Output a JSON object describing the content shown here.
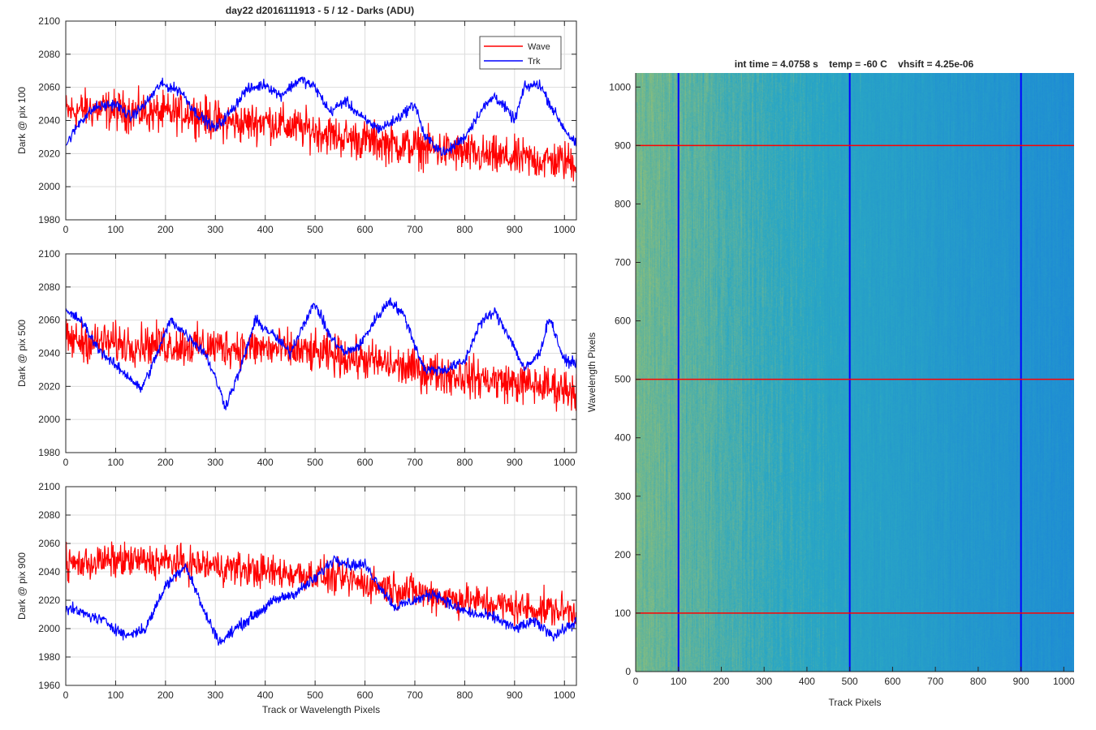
{
  "figure_title": "day22 d2016111913 - 5 / 12 - Darks (ADU)",
  "colors": {
    "wave": "#ff0000",
    "trk": "#0000ff",
    "grid": "#dcdcdc",
    "axis": "#262626",
    "heat_yellow": "#b9c858",
    "heat_teal": "#2aa7c4",
    "heat_blue": "#1d89d6"
  },
  "chart_data": [
    {
      "type": "line",
      "ylabel": "Dark @ pix 100",
      "xlabel": "",
      "xlim": [
        0,
        1024
      ],
      "ylim": [
        1980,
        2100
      ],
      "xticks": [
        0,
        100,
        200,
        300,
        400,
        500,
        600,
        700,
        800,
        900,
        1000
      ],
      "yticks": [
        1980,
        2000,
        2020,
        2040,
        2060,
        2080,
        2100
      ],
      "grid": true,
      "legend": "top-right",
      "series": [
        {
          "name": "Wave",
          "color": "#ff0000",
          "points": [
            [
              0,
              2045
            ],
            [
              50,
              2047
            ],
            [
              100,
              2046
            ],
            [
              150,
              2045
            ],
            [
              200,
              2044
            ],
            [
              250,
              2045
            ],
            [
              300,
              2040
            ],
            [
              350,
              2038
            ],
            [
              400,
              2040
            ],
            [
              450,
              2036
            ],
            [
              500,
              2034
            ],
            [
              550,
              2030
            ],
            [
              600,
              2028
            ],
            [
              650,
              2026
            ],
            [
              700,
              2024
            ],
            [
              750,
              2022
            ],
            [
              800,
              2020
            ],
            [
              850,
              2018
            ],
            [
              900,
              2017
            ],
            [
              950,
              2016
            ],
            [
              1024,
              2015
            ]
          ],
          "amplitude": 18
        },
        {
          "name": "Trk",
          "color": "#0000ff",
          "points": [
            [
              0,
              2025
            ],
            [
              30,
              2040
            ],
            [
              60,
              2048
            ],
            [
              100,
              2050
            ],
            [
              130,
              2042
            ],
            [
              160,
              2050
            ],
            [
              190,
              2062
            ],
            [
              230,
              2058
            ],
            [
              260,
              2045
            ],
            [
              300,
              2035
            ],
            [
              330,
              2045
            ],
            [
              360,
              2058
            ],
            [
              400,
              2062
            ],
            [
              430,
              2055
            ],
            [
              470,
              2065
            ],
            [
              500,
              2060
            ],
            [
              530,
              2045
            ],
            [
              560,
              2052
            ],
            [
              600,
              2040
            ],
            [
              630,
              2035
            ],
            [
              660,
              2040
            ],
            [
              700,
              2050
            ],
            [
              720,
              2030
            ],
            [
              760,
              2020
            ],
            [
              800,
              2030
            ],
            [
              830,
              2045
            ],
            [
              860,
              2055
            ],
            [
              880,
              2048
            ],
            [
              900,
              2040
            ],
            [
              920,
              2060
            ],
            [
              950,
              2062
            ],
            [
              980,
              2045
            ],
            [
              1000,
              2035
            ],
            [
              1024,
              2025
            ]
          ],
          "amplitude": 5
        }
      ]
    },
    {
      "type": "line",
      "ylabel": "Dark @ pix 500",
      "xlabel": "",
      "xlim": [
        0,
        1024
      ],
      "ylim": [
        1980,
        2100
      ],
      "xticks": [
        0,
        100,
        200,
        300,
        400,
        500,
        600,
        700,
        800,
        900,
        1000
      ],
      "yticks": [
        1980,
        2000,
        2020,
        2040,
        2060,
        2080,
        2100
      ],
      "grid": true,
      "series": [
        {
          "name": "Wave",
          "color": "#ff0000",
          "points": [
            [
              0,
              2048
            ],
            [
              100,
              2046
            ],
            [
              200,
              2045
            ],
            [
              300,
              2044
            ],
            [
              400,
              2043
            ],
            [
              500,
              2040
            ],
            [
              600,
              2036
            ],
            [
              700,
              2030
            ],
            [
              800,
              2026
            ],
            [
              900,
              2022
            ],
            [
              1024,
              2018
            ]
          ],
          "amplitude": 18
        },
        {
          "name": "Trk",
          "color": "#0000ff",
          "points": [
            [
              0,
              2065
            ],
            [
              30,
              2060
            ],
            [
              60,
              2045
            ],
            [
              90,
              2035
            ],
            [
              130,
              2025
            ],
            [
              150,
              2018
            ],
            [
              170,
              2030
            ],
            [
              210,
              2060
            ],
            [
              240,
              2052
            ],
            [
              280,
              2040
            ],
            [
              300,
              2025
            ],
            [
              320,
              2008
            ],
            [
              350,
              2030
            ],
            [
              380,
              2060
            ],
            [
              420,
              2050
            ],
            [
              450,
              2040
            ],
            [
              480,
              2060
            ],
            [
              500,
              2070
            ],
            [
              530,
              2050
            ],
            [
              560,
              2040
            ],
            [
              590,
              2045
            ],
            [
              620,
              2060
            ],
            [
              650,
              2072
            ],
            [
              680,
              2062
            ],
            [
              700,
              2045
            ],
            [
              720,
              2030
            ],
            [
              760,
              2030
            ],
            [
              800,
              2035
            ],
            [
              830,
              2058
            ],
            [
              860,
              2065
            ],
            [
              890,
              2050
            ],
            [
              920,
              2030
            ],
            [
              950,
              2040
            ],
            [
              970,
              2062
            ],
            [
              1000,
              2035
            ],
            [
              1024,
              2035
            ]
          ],
          "amplitude": 5
        }
      ]
    },
    {
      "type": "line",
      "ylabel": "Dark @ pix 900",
      "xlabel": "Track or Wavelength Pixels",
      "xlim": [
        0,
        1024
      ],
      "ylim": [
        1960,
        2100
      ],
      "xticks": [
        0,
        100,
        200,
        300,
        400,
        500,
        600,
        700,
        800,
        900,
        1000
      ],
      "yticks": [
        1960,
        1980,
        2000,
        2020,
        2040,
        2060,
        2080,
        2100
      ],
      "grid": true,
      "series": [
        {
          "name": "Wave",
          "color": "#ff0000",
          "points": [
            [
              0,
              2045
            ],
            [
              100,
              2048
            ],
            [
              200,
              2047
            ],
            [
              300,
              2044
            ],
            [
              400,
              2040
            ],
            [
              500,
              2038
            ],
            [
              600,
              2032
            ],
            [
              700,
              2026
            ],
            [
              800,
              2020
            ],
            [
              900,
              2015
            ],
            [
              1024,
              2012
            ]
          ],
          "amplitude": 18
        },
        {
          "name": "Trk",
          "color": "#0000ff",
          "points": [
            [
              0,
              2015
            ],
            [
              40,
              2010
            ],
            [
              80,
              2005
            ],
            [
              120,
              1995
            ],
            [
              160,
              2000
            ],
            [
              200,
              2030
            ],
            [
              240,
              2045
            ],
            [
              280,
              2010
            ],
            [
              310,
              1990
            ],
            [
              340,
              2000
            ],
            [
              380,
              2010
            ],
            [
              420,
              2020
            ],
            [
              460,
              2025
            ],
            [
              500,
              2035
            ],
            [
              540,
              2050
            ],
            [
              570,
              2045
            ],
            [
              600,
              2045
            ],
            [
              630,
              2030
            ],
            [
              660,
              2015
            ],
            [
              700,
              2020
            ],
            [
              740,
              2025
            ],
            [
              780,
              2015
            ],
            [
              820,
              2010
            ],
            [
              860,
              2008
            ],
            [
              900,
              2000
            ],
            [
              940,
              2005
            ],
            [
              980,
              1995
            ],
            [
              1024,
              2005
            ]
          ],
          "amplitude": 6
        }
      ]
    },
    {
      "type": "heatmap",
      "title": "int time = 4.0758 s    temp = -60 C    vhsift = 4.25e-06",
      "xlabel": "Track Pixels",
      "ylabel": "Wavelength Pixels",
      "xlim": [
        0,
        1024
      ],
      "ylim": [
        0,
        1024
      ],
      "xticks": [
        0,
        100,
        200,
        300,
        400,
        500,
        600,
        700,
        800,
        900,
        1000
      ],
      "yticks": [
        0,
        100,
        200,
        300,
        400,
        500,
        600,
        700,
        800,
        900,
        1000
      ],
      "vertical_lines": [
        100,
        500,
        900
      ],
      "horizontal_lines": [
        100,
        500,
        900
      ],
      "vertical_line_color": "#0000ff",
      "horizontal_line_color": "#ff0000"
    }
  ],
  "legend": {
    "items": [
      {
        "label": "Wave",
        "color": "#ff0000"
      },
      {
        "label": "Trk",
        "color": "#0000ff"
      }
    ]
  }
}
